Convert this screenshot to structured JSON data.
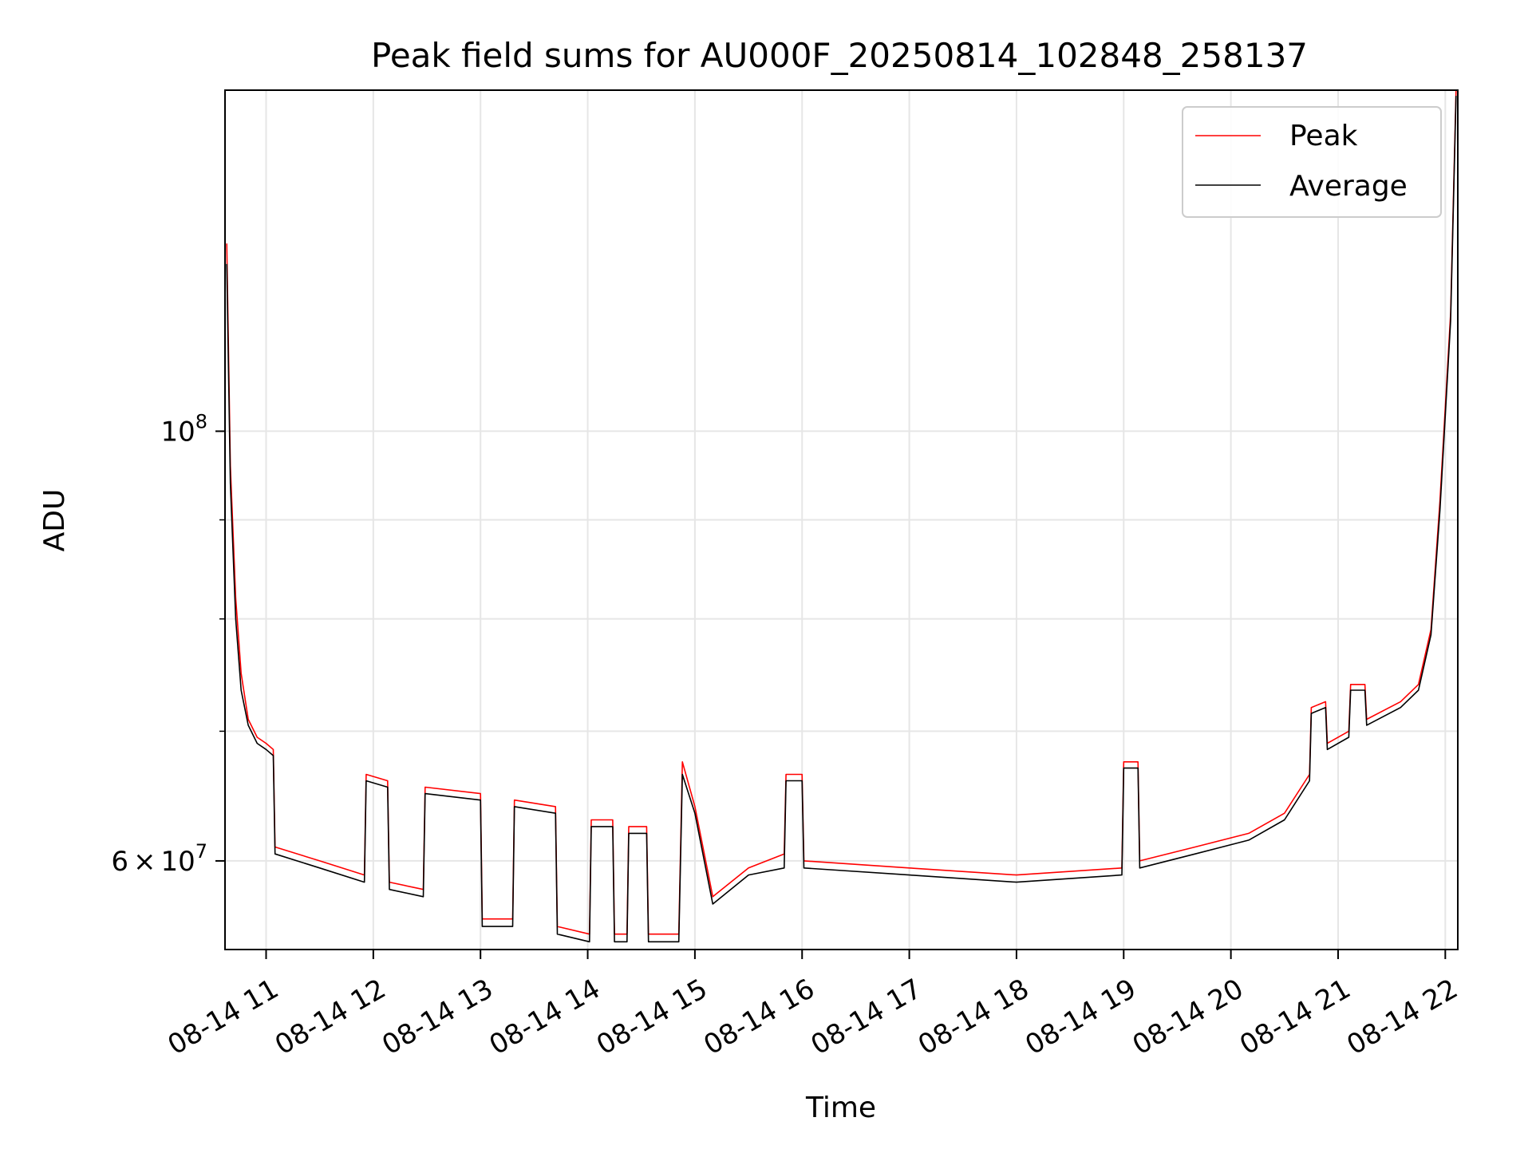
{
  "chart_data": {
    "type": "line",
    "title": "Peak field sums for AU000F_20250814_102848_258137",
    "xlabel": "Time",
    "ylabel": "ADU",
    "y_scale": "log",
    "ylim": [
      54000000,
      150000000
    ],
    "xlim": [
      "2025-08-14 10:37",
      "2025-08-14 22:07"
    ],
    "grid": true,
    "legend": "top-right",
    "x_ticks": [
      "08-14 11",
      "08-14 12",
      "08-14 13",
      "08-14 14",
      "08-14 15",
      "08-14 16",
      "08-14 17",
      "08-14 18",
      "08-14 19",
      "08-14 20",
      "08-14 21",
      "08-14 22"
    ],
    "y_ticks": [
      {
        "value": 100000000,
        "base": "10",
        "exp": "8"
      },
      {
        "value": 60000000,
        "mant": "6",
        "times": "×",
        "base": "10",
        "exp": "7"
      }
    ],
    "series": [
      {
        "name": "Peak",
        "color": "#ff0000",
        "x": [
          "2025-08-14 10:38",
          "2025-08-14 10:40",
          "2025-08-14 10:43",
          "2025-08-14 10:46",
          "2025-08-14 10:50",
          "2025-08-14 10:55",
          "2025-08-14 11:00",
          "2025-08-14 11:04",
          "2025-08-14 11:05",
          "2025-08-14 11:30",
          "2025-08-14 11:55",
          "2025-08-14 11:56",
          "2025-08-14 12:08",
          "2025-08-14 12:09",
          "2025-08-14 12:28",
          "2025-08-14 12:29",
          "2025-08-14 13:00",
          "2025-08-14 13:01",
          "2025-08-14 13:18",
          "2025-08-14 13:19",
          "2025-08-14 13:42",
          "2025-08-14 13:43",
          "2025-08-14 14:01",
          "2025-08-14 14:02",
          "2025-08-14 14:14",
          "2025-08-14 14:15",
          "2025-08-14 14:22",
          "2025-08-14 14:23",
          "2025-08-14 14:33",
          "2025-08-14 14:34",
          "2025-08-14 14:51",
          "2025-08-14 14:53",
          "2025-08-14 15:00",
          "2025-08-14 15:10",
          "2025-08-14 15:30",
          "2025-08-14 15:50",
          "2025-08-14 15:51",
          "2025-08-14 16:00",
          "2025-08-14 16:01",
          "2025-08-14 17:00",
          "2025-08-14 18:00",
          "2025-08-14 18:59",
          "2025-08-14 19:00",
          "2025-08-14 19:08",
          "2025-08-14 19:09",
          "2025-08-14 19:40",
          "2025-08-14 20:10",
          "2025-08-14 20:30",
          "2025-08-14 20:44",
          "2025-08-14 20:45",
          "2025-08-14 20:53",
          "2025-08-14 20:54",
          "2025-08-14 21:06",
          "2025-08-14 21:07",
          "2025-08-14 21:15",
          "2025-08-14 21:16",
          "2025-08-14 21:35",
          "2025-08-14 21:45",
          "2025-08-14 21:52",
          "2025-08-14 21:57",
          "2025-08-14 22:03",
          "2025-08-14 22:06"
        ],
        "y": [
          125000000,
          96000000,
          82000000,
          75000000,
          71000000,
          69500000,
          69000000,
          68500000,
          61000000,
          60000000,
          59000000,
          66500000,
          66000000,
          58500000,
          58000000,
          65500000,
          65000000,
          56000000,
          56000000,
          64500000,
          64000000,
          55500000,
          55000000,
          63000000,
          63000000,
          55000000,
          55000000,
          62500000,
          62500000,
          55000000,
          55000000,
          67500000,
          64000000,
          57500000,
          59500000,
          60500000,
          66500000,
          66500000,
          60000000,
          59500000,
          59000000,
          59500000,
          67500000,
          67500000,
          60000000,
          61000000,
          62000000,
          63500000,
          66500000,
          72000000,
          72500000,
          69000000,
          70000000,
          74000000,
          74000000,
          71000000,
          72500000,
          74000000,
          79000000,
          92000000,
          115000000,
          150000000
        ]
      },
      {
        "name": "Average",
        "color": "#000000",
        "x": [
          "2025-08-14 10:38",
          "2025-08-14 10:40",
          "2025-08-14 10:43",
          "2025-08-14 10:46",
          "2025-08-14 10:50",
          "2025-08-14 10:55",
          "2025-08-14 11:00",
          "2025-08-14 11:04",
          "2025-08-14 11:05",
          "2025-08-14 11:30",
          "2025-08-14 11:55",
          "2025-08-14 11:56",
          "2025-08-14 12:08",
          "2025-08-14 12:09",
          "2025-08-14 12:28",
          "2025-08-14 12:29",
          "2025-08-14 13:00",
          "2025-08-14 13:01",
          "2025-08-14 13:18",
          "2025-08-14 13:19",
          "2025-08-14 13:42",
          "2025-08-14 13:43",
          "2025-08-14 14:01",
          "2025-08-14 14:02",
          "2025-08-14 14:14",
          "2025-08-14 14:15",
          "2025-08-14 14:22",
          "2025-08-14 14:23",
          "2025-08-14 14:33",
          "2025-08-14 14:34",
          "2025-08-14 14:51",
          "2025-08-14 14:53",
          "2025-08-14 15:00",
          "2025-08-14 15:10",
          "2025-08-14 15:30",
          "2025-08-14 15:50",
          "2025-08-14 15:51",
          "2025-08-14 16:00",
          "2025-08-14 16:01",
          "2025-08-14 17:00",
          "2025-08-14 18:00",
          "2025-08-14 18:59",
          "2025-08-14 19:00",
          "2025-08-14 19:08",
          "2025-08-14 19:09",
          "2025-08-14 19:40",
          "2025-08-14 20:10",
          "2025-08-14 20:30",
          "2025-08-14 20:44",
          "2025-08-14 20:45",
          "2025-08-14 20:53",
          "2025-08-14 20:54",
          "2025-08-14 21:06",
          "2025-08-14 21:07",
          "2025-08-14 21:15",
          "2025-08-14 21:16",
          "2025-08-14 21:35",
          "2025-08-14 21:45",
          "2025-08-14 21:52",
          "2025-08-14 21:57",
          "2025-08-14 22:03",
          "2025-08-14 22:06"
        ],
        "y": [
          122000000,
          94000000,
          80000000,
          73500000,
          70500000,
          69000000,
          68500000,
          68000000,
          60500000,
          59500000,
          58500000,
          66000000,
          65500000,
          58000000,
          57500000,
          65000000,
          64500000,
          55500000,
          55500000,
          64000000,
          63500000,
          55000000,
          54500000,
          62500000,
          62500000,
          54500000,
          54500000,
          62000000,
          62000000,
          54500000,
          54500000,
          66500000,
          63500000,
          57000000,
          59000000,
          59500000,
          66000000,
          66000000,
          59500000,
          59000000,
          58500000,
          59000000,
          67000000,
          67000000,
          59500000,
          60500000,
          61500000,
          63000000,
          66000000,
          71500000,
          72000000,
          68500000,
          69500000,
          73500000,
          73500000,
          70500000,
          72000000,
          73500000,
          78500000,
          91000000,
          114000000,
          149000000
        ]
      }
    ]
  }
}
